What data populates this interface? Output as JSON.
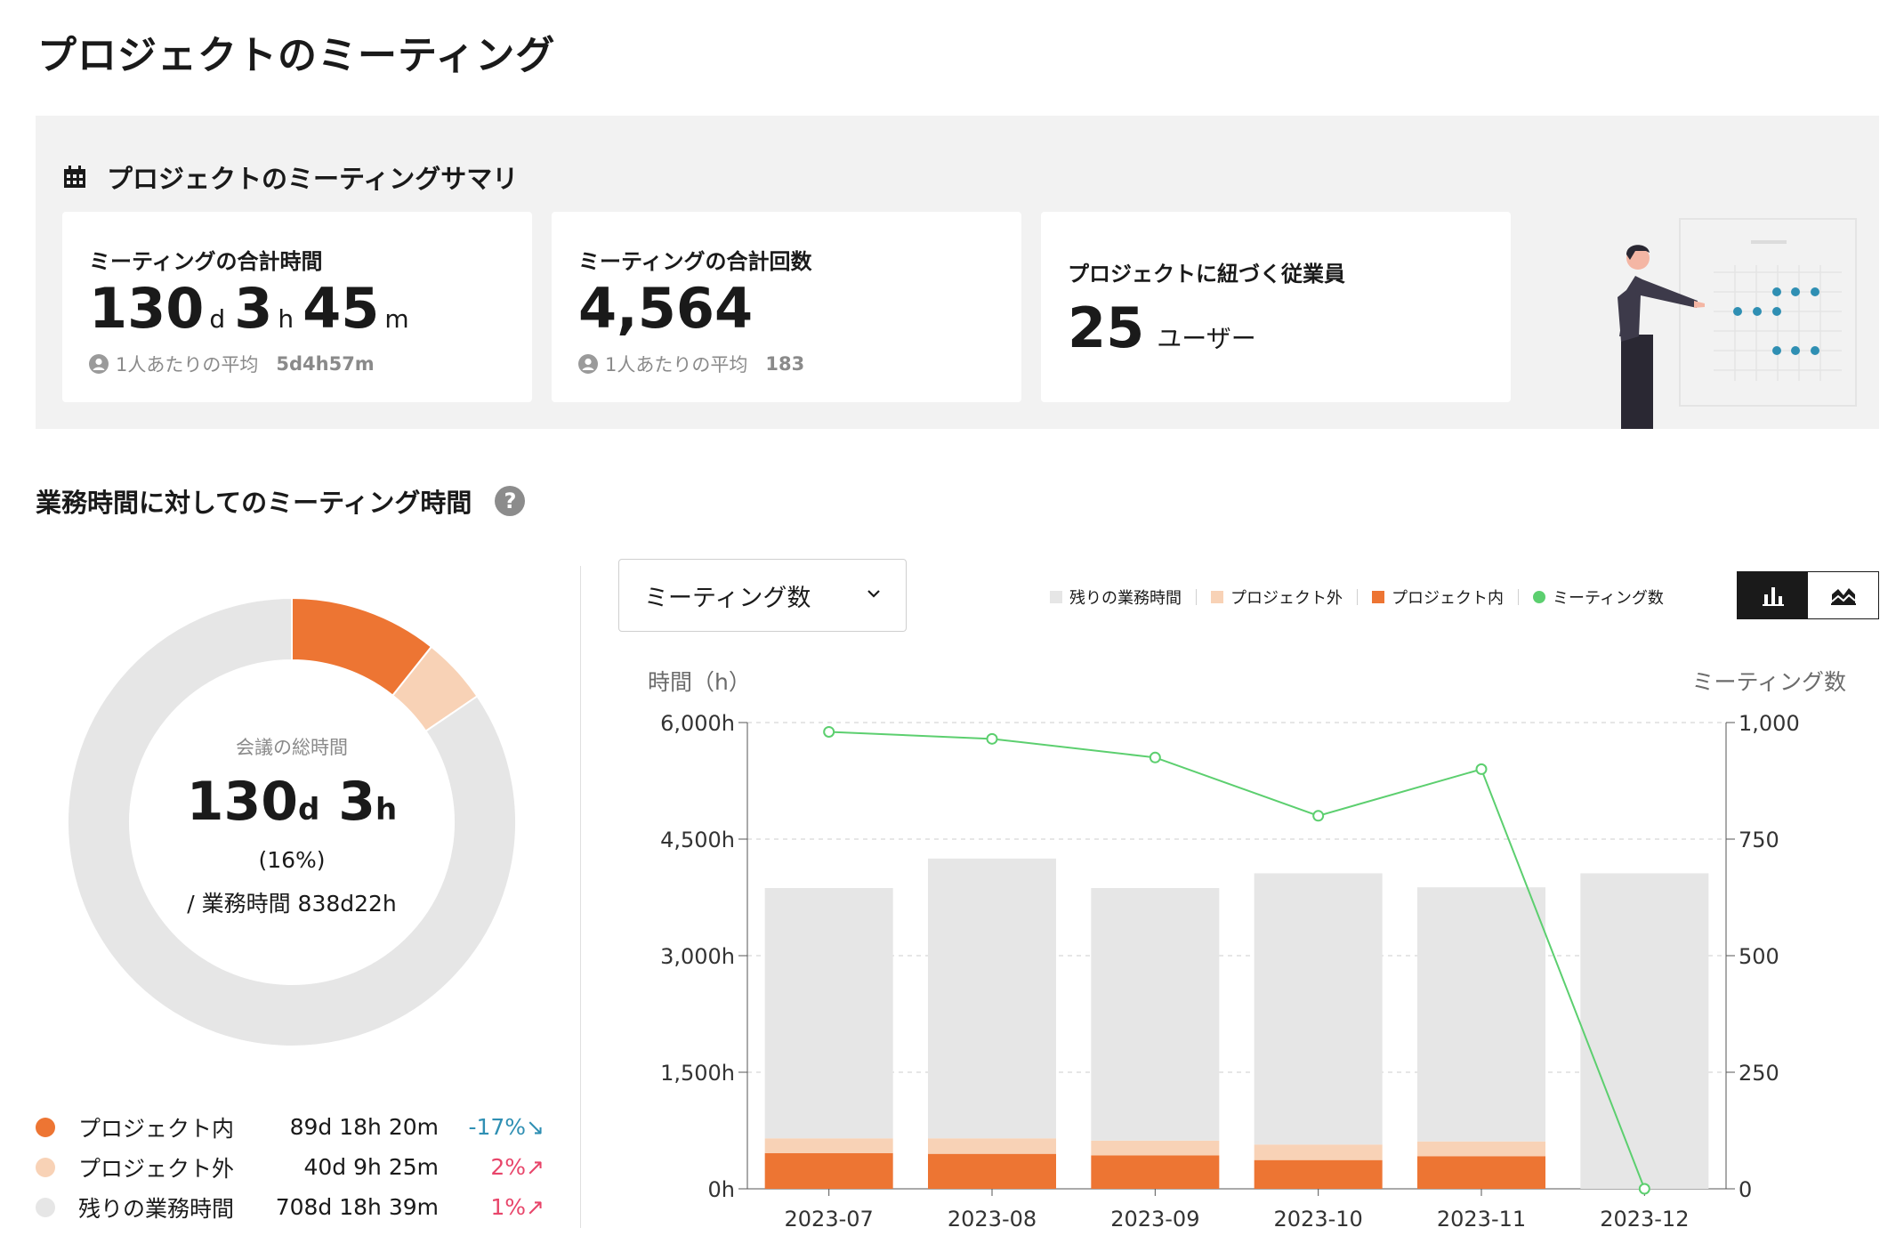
{
  "page": {
    "title": "プロジェクトのミーティング"
  },
  "summary": {
    "title": "プロジェクトのミーティングサマリ",
    "total_time": {
      "label": "ミーティングの合計時間",
      "days": "130",
      "days_unit": "d",
      "hours": "3",
      "hours_unit": "h",
      "minutes": "45",
      "minutes_unit": "m",
      "avg_label": "1人あたりの平均",
      "avg_value": "5d4h57m"
    },
    "total_count": {
      "label": "ミーティングの合計回数",
      "value": "4,564",
      "avg_label": "1人あたりの平均",
      "avg_value": "183"
    },
    "employees": {
      "label": "プロジェクトに紐づく従業員",
      "value": "25",
      "unit": "ユーザー"
    }
  },
  "section": {
    "title": "業務時間に対してのミーティング時間"
  },
  "donut": {
    "center_label": "会議の総時間",
    "total_days": "130",
    "total_days_unit": "d",
    "total_hours": "3",
    "total_hours_unit": "h",
    "percent": "(16%)",
    "work_time": "/ 業務時間 838d22h",
    "slices": [
      {
        "name": "プロジェクト内",
        "fraction": 0.107,
        "color": "#ed7533"
      },
      {
        "name": "プロジェクト外",
        "fraction": 0.048,
        "color": "#f8d2b6"
      },
      {
        "name": "残りの業務時間",
        "fraction": 0.845,
        "color": "#e6e6e6"
      }
    ],
    "legend": [
      {
        "label": "プロジェクト内",
        "value": "89d 18h 20m",
        "change": "-17%↘",
        "color": "#ed7533",
        "change_color": "#2f8fb3"
      },
      {
        "label": "プロジェクト外",
        "value": "40d 9h 25m",
        "change": "2%↗",
        "color": "#f8d2b6",
        "change_color": "#e8456a"
      },
      {
        "label": "残りの業務時間",
        "value": "708d 18h 39m",
        "change": "1%↗",
        "color": "#e6e6e6",
        "change_color": "#e8456a"
      }
    ]
  },
  "controls": {
    "dropdown_value": "ミーティング数",
    "legend": [
      {
        "label": "残りの業務時間",
        "color": "#e6e6e6",
        "shape": "square"
      },
      {
        "label": "プロジェクト外",
        "color": "#f8d2b6",
        "shape": "square"
      },
      {
        "label": "プロジェクト内",
        "color": "#ed7533",
        "shape": "square"
      },
      {
        "label": "ミーティング数",
        "color": "#5ccf6f",
        "shape": "circle"
      }
    ],
    "view_toggle": [
      "bar-chart-icon",
      "area-chart-icon"
    ]
  },
  "chart_data": {
    "type": "bar",
    "stacked": true,
    "ylabel": "時間（h）",
    "y2label": "ミーティング数",
    "categories": [
      "2023-07",
      "2023-08",
      "2023-09",
      "2023-10",
      "2023-11",
      "2023-12"
    ],
    "ylim": [
      0,
      6000
    ],
    "y_ticks": [
      "0h",
      "1,500h",
      "3,000h",
      "4,500h",
      "6,000h"
    ],
    "y2lim": [
      0,
      1000
    ],
    "y2_ticks": [
      "0",
      "250",
      "500",
      "750",
      "1,000"
    ],
    "grid": true,
    "series": [
      {
        "name": "プロジェクト内",
        "values": [
          460,
          450,
          430,
          370,
          420,
          0
        ],
        "color": "#ed7533",
        "axis": "left"
      },
      {
        "name": "プロジェクト外",
        "values": [
          190,
          200,
          190,
          200,
          190,
          0
        ],
        "color": "#f8d2b6",
        "axis": "left"
      },
      {
        "name": "残りの業務時間",
        "values": [
          3220,
          3600,
          3250,
          3490,
          3270,
          4060
        ],
        "color": "#e6e6e6",
        "axis": "left"
      },
      {
        "name": "ミーティング数",
        "type": "line",
        "values": [
          980,
          965,
          925,
          800,
          900,
          0
        ],
        "color": "#5ccf6f",
        "axis": "right"
      }
    ]
  }
}
